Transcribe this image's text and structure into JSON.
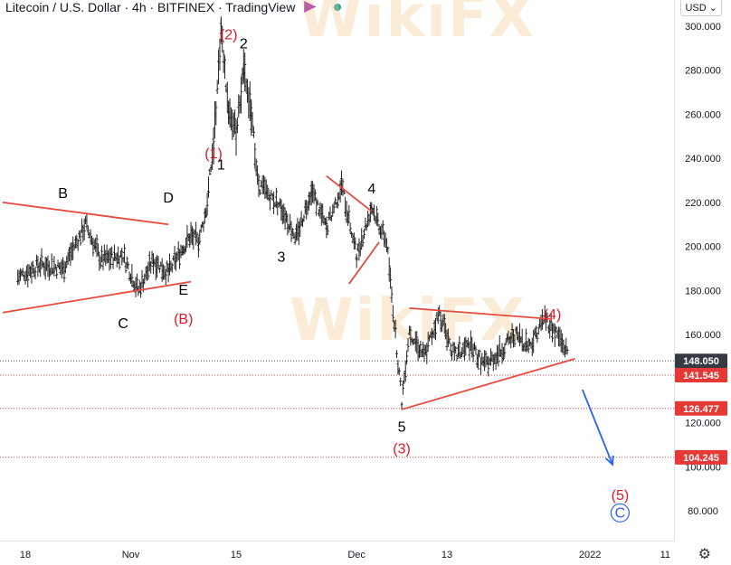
{
  "header": {
    "title": "Litecoin / U.S. Dollar · 4h · BITFINEX · TradingView",
    "currency": "USD"
  },
  "watermark_text": "WikiFX",
  "colors": {
    "price_bars": "#222222",
    "wave_labels": "#e0182e",
    "trendlines": "#e84a3c",
    "forecast_arrow": "#2962ff",
    "axis_text": "#131722"
  },
  "chart_data": {
    "type": "ohlc",
    "xlabel": "",
    "ylabel": "",
    "y_range": [
      72,
      310
    ],
    "y_ticks": [
      80,
      100,
      120,
      140,
      160,
      180,
      200,
      220,
      240,
      260,
      280,
      300
    ],
    "y_tick_labels": [
      "80.000",
      "100.000",
      "120.000",
      "140.000",
      "160.000",
      "180.000",
      "200.000",
      "220.000",
      "240.000",
      "260.000",
      "280.000",
      "300.000"
    ],
    "x_tick_labels": [
      "18",
      "Nov",
      "15",
      "Dec",
      "13",
      "2022",
      "11"
    ],
    "price_path": [
      {
        "x": "Oct 17",
        "y": 186
      },
      {
        "x": "Oct 20",
        "y": 192
      },
      {
        "x": "Oct 23",
        "y": 190
      },
      {
        "x": "Oct 26",
        "y": 210
      },
      {
        "x": "Oct 28",
        "y": 194
      },
      {
        "x": "Oct 31",
        "y": 196
      },
      {
        "x": "Nov 2",
        "y": 180
      },
      {
        "x": "Nov 4",
        "y": 194
      },
      {
        "x": "Nov 6",
        "y": 188
      },
      {
        "x": "Nov 8",
        "y": 200
      },
      {
        "x": "Nov 9",
        "y": 205
      },
      {
        "x": "Nov 10",
        "y": 202
      },
      {
        "x": "Nov 11",
        "y": 216
      },
      {
        "x": "Nov 12",
        "y": 246
      },
      {
        "x": "Nov 13",
        "y": 298
      },
      {
        "x": "Nov 14",
        "y": 262
      },
      {
        "x": "Nov 15",
        "y": 252
      },
      {
        "x": "Nov 16",
        "y": 280
      },
      {
        "x": "Nov 17",
        "y": 260
      },
      {
        "x": "Nov 18",
        "y": 228
      },
      {
        "x": "Nov 21",
        "y": 218
      },
      {
        "x": "Nov 23",
        "y": 204
      },
      {
        "x": "Nov 25",
        "y": 226
      },
      {
        "x": "Nov 27",
        "y": 208
      },
      {
        "x": "Nov 29",
        "y": 228
      },
      {
        "x": "Dec 1",
        "y": 196
      },
      {
        "x": "Dec 3",
        "y": 218
      },
      {
        "x": "Dec 5",
        "y": 202
      },
      {
        "x": "Dec 7",
        "y": 130
      },
      {
        "x": "Dec 8",
        "y": 162
      },
      {
        "x": "Dec 10",
        "y": 150
      },
      {
        "x": "Dec 12",
        "y": 170
      },
      {
        "x": "Dec 14",
        "y": 150
      },
      {
        "x": "Dec 16",
        "y": 155
      },
      {
        "x": "Dec 18",
        "y": 146
      },
      {
        "x": "Dec 20",
        "y": 152
      },
      {
        "x": "Dec 22",
        "y": 160
      },
      {
        "x": "Dec 24",
        "y": 155
      },
      {
        "x": "Dec 26",
        "y": 168
      },
      {
        "x": "Dec 28",
        "y": 158
      },
      {
        "x": "Dec 30",
        "y": 146
      }
    ],
    "price_labels": [
      {
        "value": 148.05,
        "text": "148.050",
        "bg": "#363a45"
      },
      {
        "value": 141.545,
        "text": "141.545",
        "bg": "#e53935"
      },
      {
        "value": 126.477,
        "text": "126.477",
        "bg": "#e53935"
      },
      {
        "value": 104.245,
        "text": "104.245",
        "bg": "#e53935"
      }
    ],
    "annotations": [
      {
        "text": "B",
        "x": "Oct 23",
        "y": 222,
        "color": "#000000"
      },
      {
        "text": "D",
        "x": "Nov 6",
        "y": 220,
        "color": "#000000"
      },
      {
        "text": "C",
        "x": "Oct 31",
        "y": 163,
        "color": "#000000"
      },
      {
        "text": "E",
        "x": "Nov 8",
        "y": 178,
        "color": "#000000"
      },
      {
        "text": "(B)",
        "x": "Nov 8",
        "y": 165,
        "color": "#e0182e"
      },
      {
        "text": "(1)",
        "x": "Nov 12",
        "y": 240,
        "color": "#e0182e"
      },
      {
        "text": "1",
        "x": "Nov 13",
        "y": 235,
        "color": "#000000"
      },
      {
        "text": "(2)",
        "x": "Nov 14",
        "y": 294,
        "color": "#e0182e"
      },
      {
        "text": "2",
        "x": "Nov 16",
        "y": 290,
        "color": "#000000"
      },
      {
        "text": "3",
        "x": "Nov 21",
        "y": 193,
        "color": "#000000"
      },
      {
        "text": "4",
        "x": "Dec 3",
        "y": 224,
        "color": "#000000"
      },
      {
        "text": "5",
        "x": "Dec 7",
        "y": 116,
        "color": "#000000"
      },
      {
        "text": "(3)",
        "x": "Dec 7",
        "y": 106,
        "color": "#e0182e"
      },
      {
        "text": "(4)",
        "x": "Dec 27",
        "y": 167,
        "color": "#e0182e"
      },
      {
        "text": "(5)",
        "x": "Jan 5",
        "y": 85,
        "color": "#e0182e"
      },
      {
        "text": "C",
        "x": "Jan 5",
        "y": 77,
        "color": "#2962ff",
        "circled": true
      }
    ],
    "trendlines": [
      {
        "from": {
          "x": "Oct 15",
          "y": 220
        },
        "to": {
          "x": "Nov 6",
          "y": 210
        }
      },
      {
        "from": {
          "x": "Oct 15",
          "y": 170
        },
        "to": {
          "x": "Nov 9",
          "y": 184
        }
      },
      {
        "from": {
          "x": "Nov 27",
          "y": 232
        },
        "to": {
          "x": "Dec 3",
          "y": 216
        }
      },
      {
        "from": {
          "x": "Nov 30",
          "y": 183
        },
        "to": {
          "x": "Dec 4",
          "y": 202
        }
      },
      {
        "from": {
          "x": "Dec 8",
          "y": 172
        },
        "to": {
          "x": "Dec 27",
          "y": 167
        }
      },
      {
        "from": {
          "x": "Dec 7",
          "y": 126
        },
        "to": {
          "x": "Dec 30",
          "y": 149
        }
      }
    ],
    "forecast_arrow": {
      "from": {
        "x": "Dec 31",
        "y": 135
      },
      "to": {
        "x": "Jan 4",
        "y": 101
      }
    },
    "grid": false,
    "legend": "none"
  }
}
